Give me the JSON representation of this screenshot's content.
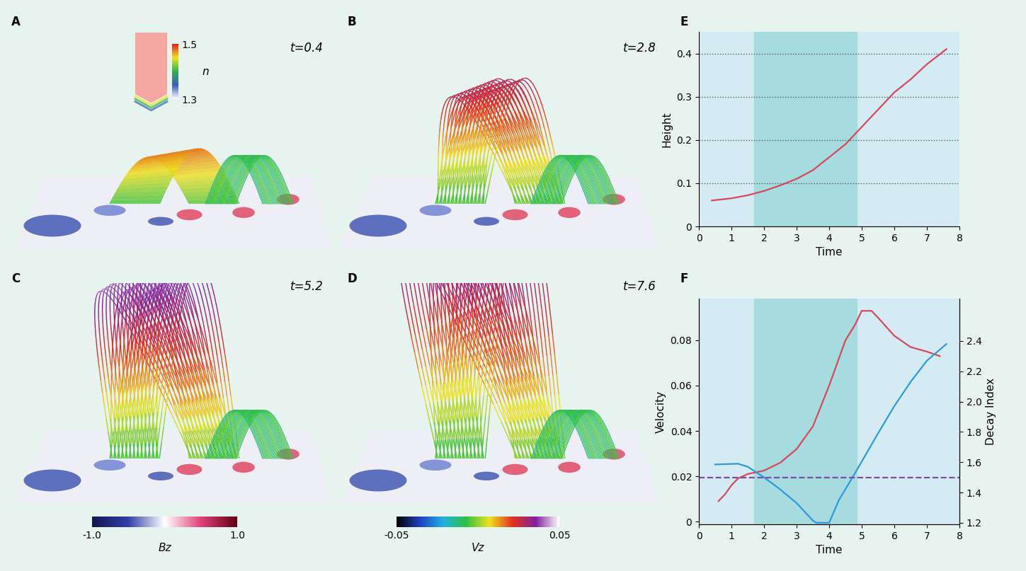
{
  "chart_data": [
    {
      "type": "image",
      "panel": "A",
      "annotation": "t=0.4",
      "colorbar": {
        "label": "n",
        "lim": [
          1.3,
          1.5
        ],
        "ticks": [
          1.3,
          1.5
        ]
      }
    },
    {
      "type": "image",
      "panel": "B",
      "annotation": "t=2.8"
    },
    {
      "type": "image",
      "panel": "C",
      "annotation": "t=5.2"
    },
    {
      "type": "image",
      "panel": "D",
      "annotation": "t=7.6"
    },
    {
      "type": "colorbar",
      "label": "Bz",
      "lim": [
        -1.0,
        1.0
      ],
      "ticks": [
        {
          "value": -1.0,
          "label": "-1.0"
        },
        {
          "value": 1.0,
          "label": "1.0"
        }
      ]
    },
    {
      "type": "colorbar",
      "label": "Vz",
      "lim": [
        -0.05,
        0.05
      ],
      "ticks": [
        -0.05,
        0.05
      ]
    },
    {
      "type": "line",
      "panel": "E",
      "xlabel": "Time",
      "ylabel": "Height",
      "x": [
        0.4,
        1.0,
        1.5,
        2.0,
        2.5,
        3.0,
        3.5,
        4.0,
        4.5,
        5.0,
        5.5,
        6.0,
        6.5,
        7.0,
        7.6
      ],
      "values": [
        0.06,
        0.065,
        0.072,
        0.082,
        0.095,
        0.11,
        0.13,
        0.16,
        0.19,
        0.23,
        0.27,
        0.31,
        0.34,
        0.375,
        0.41
      ],
      "color": "#d9475a",
      "xlim": [
        0,
        8
      ],
      "ylim": [
        0,
        0.45
      ],
      "xticks": [
        0,
        1,
        2,
        3,
        4,
        5,
        6,
        7,
        8
      ],
      "yticks": [
        0,
        0.1,
        0.2,
        0.3,
        0.4
      ],
      "grid": true,
      "shaded_span": [
        1.7,
        4.85
      ]
    },
    {
      "type": "line",
      "panel": "F",
      "xlabel": "Time",
      "ylabel": "Velocity",
      "y2label": "Decay Index",
      "series": [
        {
          "color": "#d9475a",
          "x": [
            0.6,
            0.8,
            1.0,
            1.2,
            1.5,
            2.0,
            2.5,
            3.0,
            3.5,
            4.0,
            4.5,
            4.8,
            5.0,
            5.3,
            5.5,
            6.0,
            6.5,
            7.0,
            7.4
          ],
          "values": [
            0.009,
            0.012,
            0.016,
            0.019,
            0.021,
            0.0225,
            0.026,
            0.032,
            0.042,
            0.06,
            0.08,
            0.087,
            0.093,
            0.093,
            0.09,
            0.082,
            0.077,
            0.075,
            0.073
          ]
        },
        {
          "color": "#2e9bd6",
          "axis": "y2",
          "x": [
            0.5,
            1.2,
            1.5,
            2.0,
            2.5,
            3.0,
            3.5,
            3.6,
            4.0,
            4.3,
            4.8,
            5.5,
            6.0,
            6.5,
            7.0,
            7.6
          ],
          "values": [
            1.585,
            1.59,
            1.57,
            1.5,
            1.42,
            1.33,
            1.215,
            1.2,
            1.2,
            1.35,
            1.53,
            1.79,
            1.97,
            2.13,
            2.27,
            2.38
          ]
        }
      ],
      "threshold": 1.5,
      "threshold_color": "#7b4fa3",
      "xlim": [
        0,
        8
      ],
      "ylim": [
        -0.0012,
        0.0984
      ],
      "y2lim": [
        1.19,
        2.68
      ],
      "xticks": [
        0,
        1,
        2,
        3,
        4,
        5,
        6,
        7,
        8
      ],
      "yticks": [
        0,
        0.02,
        0.04,
        0.06,
        0.08
      ],
      "y2ticks": [
        1.2,
        1.4,
        1.6,
        1.8,
        2.0,
        2.2,
        2.4
      ],
      "shaded_span": [
        1.7,
        4.85
      ]
    }
  ]
}
